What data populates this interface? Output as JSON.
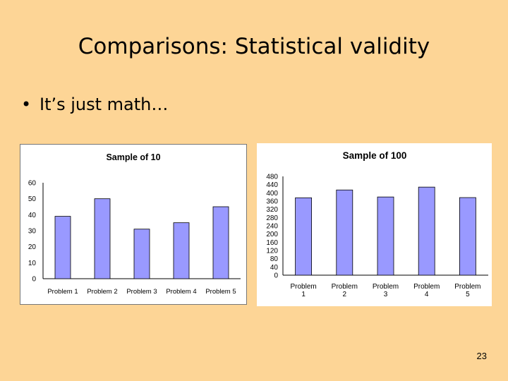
{
  "slide": {
    "title": "Comparisons: Statistical validity",
    "bullet_marker": "•",
    "bullet_text": "It’s just math…",
    "page_number": "23"
  },
  "colors": {
    "background": "#fdd596",
    "bar_fill": "#9999ff",
    "bar_stroke": "#000000"
  },
  "chart_data": [
    {
      "type": "bar",
      "title": "Sample of 10",
      "categories": [
        "Problem 1",
        "Problem 2",
        "Problem 3",
        "Problem 4",
        "Problem 5"
      ],
      "values": [
        39,
        50,
        31,
        35,
        45
      ],
      "ylim": [
        0,
        60
      ],
      "yticks": [
        "0",
        "10",
        "20",
        "30",
        "40",
        "50",
        "60"
      ],
      "xlabel": "",
      "ylabel": "",
      "grid": false,
      "legend": "none"
    },
    {
      "type": "bar",
      "title": "Sample of 100",
      "categories": [
        "Problem 1",
        "Problem 2",
        "Problem 3",
        "Problem 4",
        "Problem 5"
      ],
      "category_lines": [
        [
          "Problem",
          "1"
        ],
        [
          "Problem",
          "2"
        ],
        [
          "Problem",
          "3"
        ],
        [
          "Problem",
          "4"
        ],
        [
          "Problem",
          "5"
        ]
      ],
      "values": [
        376,
        414,
        380,
        428,
        377
      ],
      "ylim": [
        0,
        480
      ],
      "yticks": [
        "0",
        "40",
        "80",
        "120",
        "160",
        "200",
        "240",
        "280",
        "320",
        "360",
        "400",
        "440",
        "480"
      ],
      "xlabel": "",
      "ylabel": "",
      "grid": false,
      "legend": "none"
    }
  ]
}
